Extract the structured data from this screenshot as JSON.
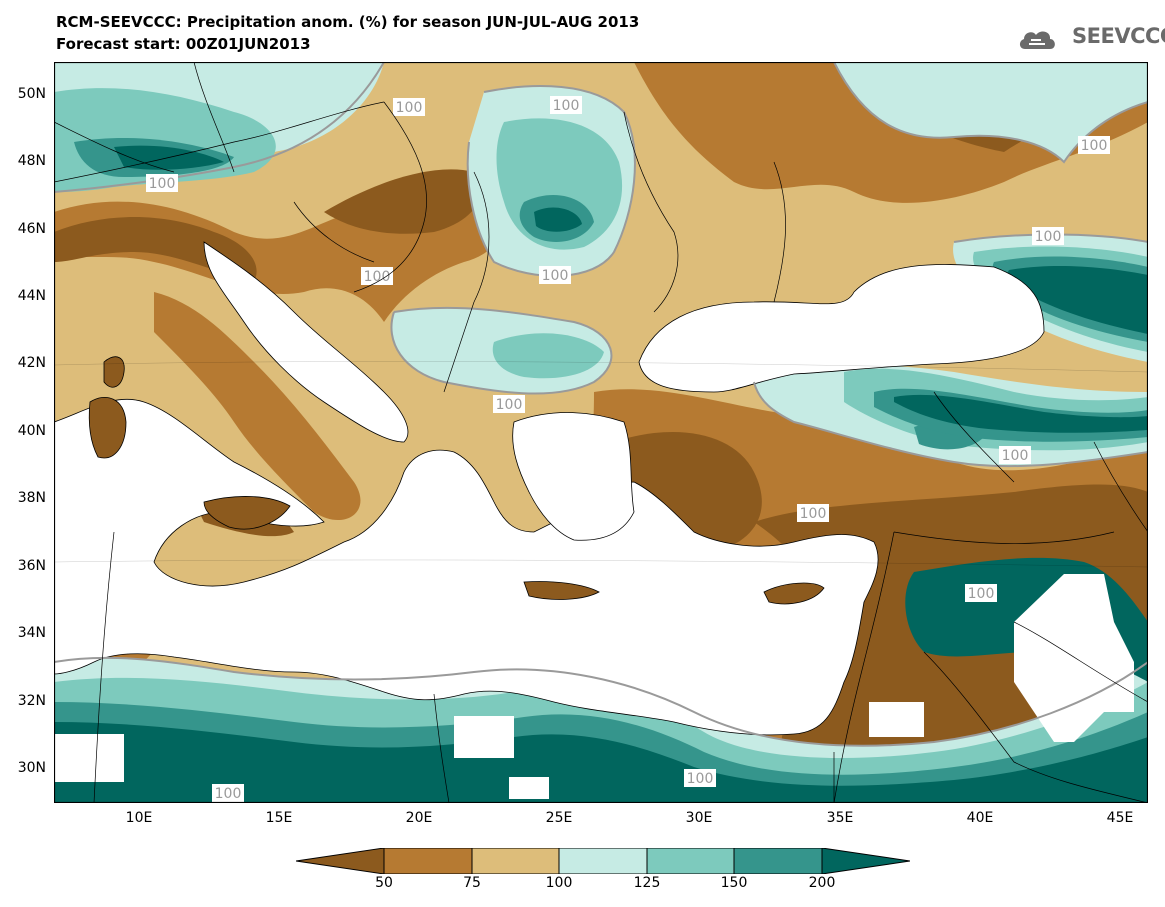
{
  "header": {
    "title_line1": "RCM-SEEVCCC: Precipitation anom. (%) for season JUN-JUL-AUG 2013",
    "title_line2": "Forecast start: 00Z01JUN2013",
    "logo_text": "SEEVCCC"
  },
  "map": {
    "lat_labels": [
      "50N",
      "48N",
      "46N",
      "44N",
      "42N",
      "40N",
      "38N",
      "36N",
      "34N",
      "32N",
      "30N"
    ],
    "lon_labels": [
      "10E",
      "15E",
      "20E",
      "25E",
      "30E",
      "35E",
      "40E",
      "45E"
    ],
    "contour_label": "100",
    "colors": {
      "below_50": "#8c5a1e",
      "50_75": "#b67a32",
      "75_100": "#ddbd7a",
      "100_125": "#c6ebe4",
      "125_150": "#7dcabd",
      "150_200": "#35958c",
      "above_200": "#01665e",
      "sea": "#ffffff"
    }
  },
  "colorbar": {
    "labels": [
      "50",
      "75",
      "100",
      "125",
      "150",
      "200"
    ]
  }
}
